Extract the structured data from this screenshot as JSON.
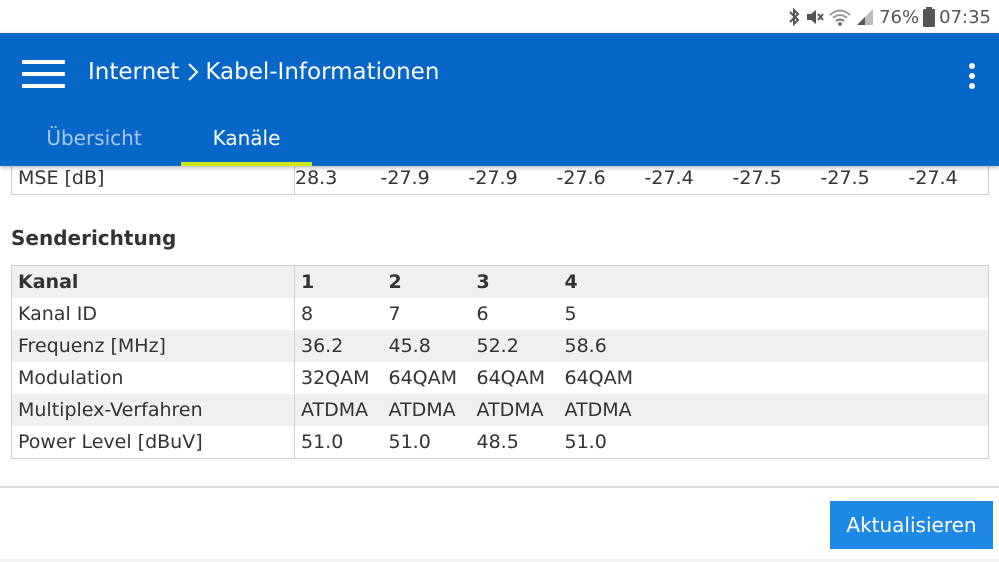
{
  "status_bar": {
    "battery_percent": "76%",
    "time": "07:35",
    "icons": [
      "bluetooth-icon",
      "mute-icon",
      "wifi-icon",
      "signal-icon",
      "battery-icon"
    ]
  },
  "header": {
    "breadcrumb_parent": "Internet",
    "breadcrumb_current": "Kabel-Informationen",
    "tabs": [
      {
        "label": "Übersicht",
        "active": false
      },
      {
        "label": "Kanäle",
        "active": true
      }
    ]
  },
  "receive_partial": {
    "row_label": "MSE [dB]",
    "values": [
      "28.3",
      "-27.9",
      "-27.9",
      "-27.6",
      "-27.4",
      "-27.5",
      "-27.5",
      "-27.4"
    ]
  },
  "upstream": {
    "title": "Senderichtung",
    "header": {
      "label": "Kanal",
      "values": [
        "1",
        "2",
        "3",
        "4"
      ]
    },
    "rows": [
      {
        "label": "Kanal ID",
        "values": [
          "8",
          "7",
          "6",
          "5"
        ]
      },
      {
        "label": "Frequenz [MHz]",
        "values": [
          "36.2",
          "45.8",
          "52.2",
          "58.6"
        ]
      },
      {
        "label": "Modulation",
        "values": [
          "32QAM",
          "64QAM",
          "64QAM",
          "64QAM"
        ]
      },
      {
        "label": "Multiplex-Verfahren",
        "values": [
          "ATDMA",
          "ATDMA",
          "ATDMA",
          "ATDMA"
        ]
      },
      {
        "label": "Power Level [dBuV]",
        "values": [
          "51.0",
          "51.0",
          "48.5",
          "51.0"
        ]
      }
    ]
  },
  "actions": {
    "refresh_label": "Aktualisieren"
  },
  "colors": {
    "header_bg": "#0667c9",
    "tab_indicator": "#c8e61a",
    "button_bg": "#1e88e5"
  }
}
